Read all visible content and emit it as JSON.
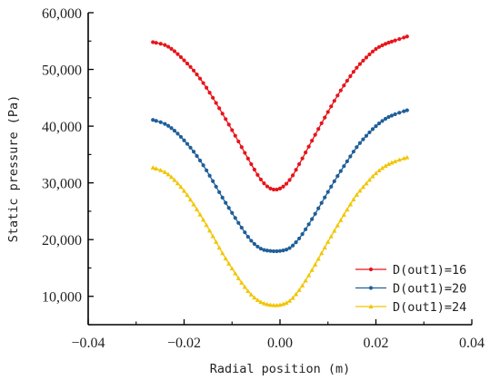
{
  "chart_data": {
    "type": "line",
    "xlabel": "Radial position (m)",
    "ylabel": "Static pressure (Pa)",
    "xlim": [
      -0.04,
      0.04
    ],
    "ylim": [
      5000,
      60000
    ],
    "x_ticks": [
      -0.04,
      -0.02,
      0.0,
      0.02,
      0.04
    ],
    "x_tick_labels": [
      "−0.04",
      "−0.02",
      "0.00",
      "0.02",
      "0.04"
    ],
    "y_ticks": [
      10000,
      20000,
      30000,
      40000,
      50000,
      60000
    ],
    "y_tick_labels": [
      "10,000",
      "20,000",
      "30,000",
      "40,000",
      "50,000",
      "60,000"
    ],
    "grid": false,
    "legend_position": "bottom-right",
    "series": [
      {
        "name": "D(out1)=16",
        "color": "#e8141b",
        "marker": "circle",
        "x": [
          -0.0265,
          -0.024,
          -0.022,
          -0.02,
          -0.018,
          -0.016,
          -0.014,
          -0.012,
          -0.01,
          -0.008,
          -0.006,
          -0.004,
          -0.002,
          0.0,
          0.002,
          0.004,
          0.006,
          0.008,
          0.01,
          0.012,
          0.014,
          0.016,
          0.018,
          0.02,
          0.022,
          0.024,
          0.0265
        ],
        "y": [
          54800,
          54300,
          53200,
          51600,
          49800,
          47600,
          45000,
          42200,
          39300,
          36300,
          33300,
          30600,
          29000,
          29000,
          30500,
          33300,
          36400,
          39500,
          42500,
          45400,
          48000,
          50300,
          52100,
          53600,
          54500,
          55100,
          55800
        ]
      },
      {
        "name": "D(out1)=20",
        "color": "#1f5f99",
        "marker": "circle",
        "x": [
          -0.0265,
          -0.024,
          -0.022,
          -0.02,
          -0.018,
          -0.016,
          -0.014,
          -0.012,
          -0.01,
          -0.008,
          -0.006,
          -0.004,
          -0.002,
          0.0,
          0.002,
          0.004,
          0.006,
          0.008,
          0.01,
          0.012,
          0.014,
          0.016,
          0.018,
          0.02,
          0.022,
          0.024,
          0.0265
        ],
        "y": [
          41100,
          40400,
          39200,
          37500,
          35500,
          33100,
          30300,
          27400,
          24700,
          22100,
          19800,
          18400,
          18000,
          18000,
          18500,
          20200,
          22700,
          25500,
          28400,
          31200,
          33800,
          36300,
          38300,
          40000,
          41300,
          42100,
          42800
        ]
      },
      {
        "name": "D(out1)=24",
        "color": "#f2c500",
        "marker": "triangle",
        "x": [
          -0.0265,
          -0.024,
          -0.022,
          -0.02,
          -0.018,
          -0.016,
          -0.014,
          -0.012,
          -0.01,
          -0.008,
          -0.006,
          -0.004,
          -0.002,
          0.0,
          0.002,
          0.004,
          0.006,
          0.008,
          0.01,
          0.012,
          0.014,
          0.016,
          0.018,
          0.02,
          0.022,
          0.024,
          0.0265
        ],
        "y": [
          32700,
          31900,
          30500,
          28600,
          26200,
          23500,
          20600,
          17600,
          14900,
          12400,
          10300,
          9000,
          8500,
          8500,
          9200,
          11100,
          13700,
          16600,
          19600,
          22500,
          25300,
          27900,
          29900,
          31700,
          33000,
          33800,
          34500
        ]
      }
    ]
  }
}
